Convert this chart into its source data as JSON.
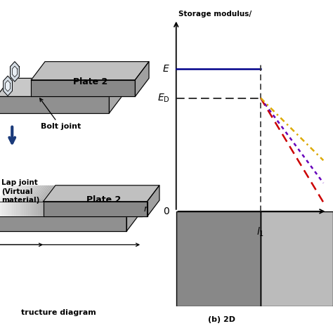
{
  "bg_color": "#ffffff",
  "left_panel": {
    "plate2_label": "Plate 2",
    "bolt_joint_label": "Bolt joint",
    "lap_joint_label": "Lap joint\n(Virtual\nmaterial)",
    "plate2_lower_label": "Plate 2",
    "r_label": "r",
    "caption_left": "tructure diagram",
    "caption_right": "(b) 2D"
  },
  "right_panel": {
    "title": "Storage modulus/",
    "E_label": "E",
    "ED_label": "E_D",
    "l1_label": "l_1",
    "zero_label": "0",
    "line_blue_color": "#00008B",
    "line_dash_color": "#333333",
    "line_red_color": "#CC0000",
    "line_purple_color": "#6600BB",
    "line_yellow_color": "#DDAA00",
    "plate_dark_color": "#888888",
    "plate_light_color": "#BBBBBB"
  },
  "upper_plate1_color_top": "#C8C8C8",
  "upper_plate1_color_front": "#909090",
  "upper_plate1_color_side": "#A8A8A8",
  "upper_plate2_color_top": "#C0C0C0",
  "upper_plate2_color_front": "#888888",
  "upper_plate2_color_side": "#A0A0A0",
  "lower_plate1_color_top": "#C8C8C8",
  "lower_plate1_color_front": "#909090",
  "lower_plate1_color_side": "#A8A8A8",
  "lower_plate2_color_top": "#C0C0C0",
  "lower_plate2_color_front": "#888888",
  "lower_plate2_color_side": "#A0A0A0"
}
